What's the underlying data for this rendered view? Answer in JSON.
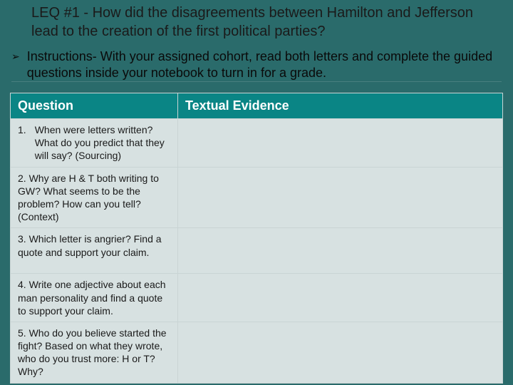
{
  "title": "LEQ #1 -  How did the disagreements between Hamilton and Jefferson lead to the creation of the first political parties?",
  "bullet": "➢",
  "instructions": "Instructions- With your assigned cohort, read both letters and complete the guided questions inside your notebook to turn in for a grade.",
  "headers": {
    "question": "Question",
    "evidence": "Textual Evidence"
  },
  "rows": {
    "r1": {
      "num": "1.",
      "text": "When were letters written? What do you predict that they will say? (Sourcing)",
      "evidence": ""
    },
    "r2": {
      "text": "2. Why are H & T both writing to GW? What seems to be the problem? How can you tell? (Context)",
      "evidence": ""
    },
    "r3": {
      "text": "3. Which letter is angrier? Find a quote and support your claim.",
      "evidence": ""
    },
    "r4": {
      "text": "4. Write  one adjective about each man personality and find a quote to support your claim.",
      "evidence": ""
    },
    "r5": {
      "text": "5. Who do you believe started the fight? Based on what they wrote, who do you trust more: H or T? Why?",
      "evidence": ""
    }
  },
  "colors": {
    "slide_bg": "#2a6b6b",
    "header_bg": "#0a8585",
    "header_text": "#ffffff",
    "cell_bg": "#d7e1e1",
    "border": "#c9d4d4",
    "title_text": "#1a1a1a",
    "body_text": "#1a1a1a"
  },
  "fonts": {
    "title_size": 20,
    "instructions_size": 18,
    "header_size": 18,
    "cell_size": 14
  }
}
